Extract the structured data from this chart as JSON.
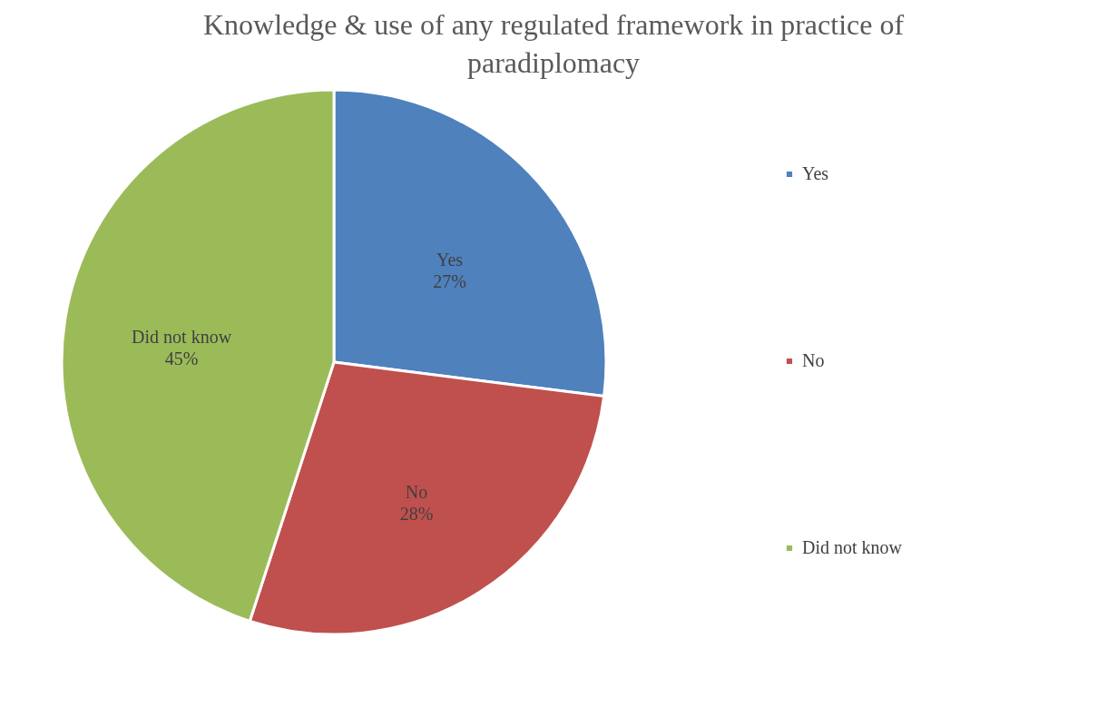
{
  "chart_data": {
    "type": "pie",
    "title": "Knowledge & use of any regulated framework in practice of paradiplomacy",
    "categories": [
      "Yes",
      "No",
      "Did not know"
    ],
    "values": [
      27,
      28,
      45
    ],
    "value_labels": [
      "27%",
      "28%",
      "45%"
    ],
    "colors": [
      "#4f81bd",
      "#c0504d",
      "#9bbb59"
    ],
    "legend": "right"
  }
}
